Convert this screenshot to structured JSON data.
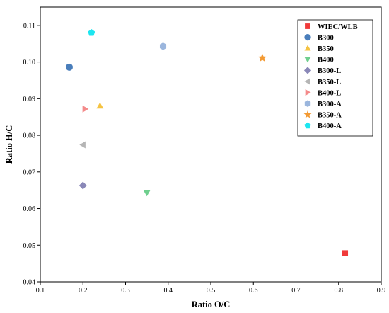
{
  "chart_data": {
    "type": "scatter",
    "title": "",
    "xlabel": "Ratio O/C",
    "ylabel": "Ratio H/C",
    "xlim": [
      0.1,
      0.9
    ],
    "ylim": [
      0.04,
      0.115
    ],
    "xticks": [
      0.1,
      0.2,
      0.3,
      0.4,
      0.5,
      0.6,
      0.7,
      0.8,
      0.9
    ],
    "yticks": [
      0.04,
      0.05,
      0.06,
      0.07,
      0.08,
      0.09,
      0.1,
      0.11
    ],
    "xtick_labels": [
      "0.1",
      "0.2",
      "0.3",
      "0.4",
      "0.5",
      "0.6",
      "0.7",
      "0.8",
      "0.9"
    ],
    "ytick_labels": [
      "0.04",
      "0.05",
      "0.06",
      "0.07",
      "0.08",
      "0.09",
      "0.10",
      "0.11"
    ],
    "grid": false,
    "legend_position": "top-right",
    "series": [
      {
        "name": "WIEC/WLB",
        "marker": "square",
        "color": "#f03a3a",
        "x": [
          0.815
        ],
        "y": [
          0.0478
        ]
      },
      {
        "name": "B300",
        "marker": "circle",
        "color": "#4a7ebb",
        "x": [
          0.168
        ],
        "y": [
          0.0986
        ]
      },
      {
        "name": "B350",
        "marker": "triangle-up",
        "color": "#f5c342",
        "x": [
          0.24
        ],
        "y": [
          0.088
        ]
      },
      {
        "name": "B400",
        "marker": "triangle-down",
        "color": "#6fcf8e",
        "x": [
          0.35
        ],
        "y": [
          0.0643
        ]
      },
      {
        "name": "B300-L",
        "marker": "diamond",
        "color": "#8a88b8",
        "x": [
          0.2
        ],
        "y": [
          0.0663
        ]
      },
      {
        "name": "B350-L",
        "marker": "triangle-left",
        "color": "#b5b5b5",
        "x": [
          0.2
        ],
        "y": [
          0.0774
        ]
      },
      {
        "name": "B400-L",
        "marker": "triangle-right",
        "color": "#f48a8a",
        "x": [
          0.205
        ],
        "y": [
          0.0872
        ]
      },
      {
        "name": "B300-A",
        "marker": "hexagon",
        "color": "#9bb6dd",
        "x": [
          0.388
        ],
        "y": [
          0.1043
        ]
      },
      {
        "name": "B350-A",
        "marker": "star",
        "color": "#f39a33",
        "x": [
          0.621
        ],
        "y": [
          0.1011
        ]
      },
      {
        "name": "B400-A",
        "marker": "pentagon",
        "color": "#1de6f0",
        "x": [
          0.22
        ],
        "y": [
          0.108
        ]
      }
    ]
  }
}
